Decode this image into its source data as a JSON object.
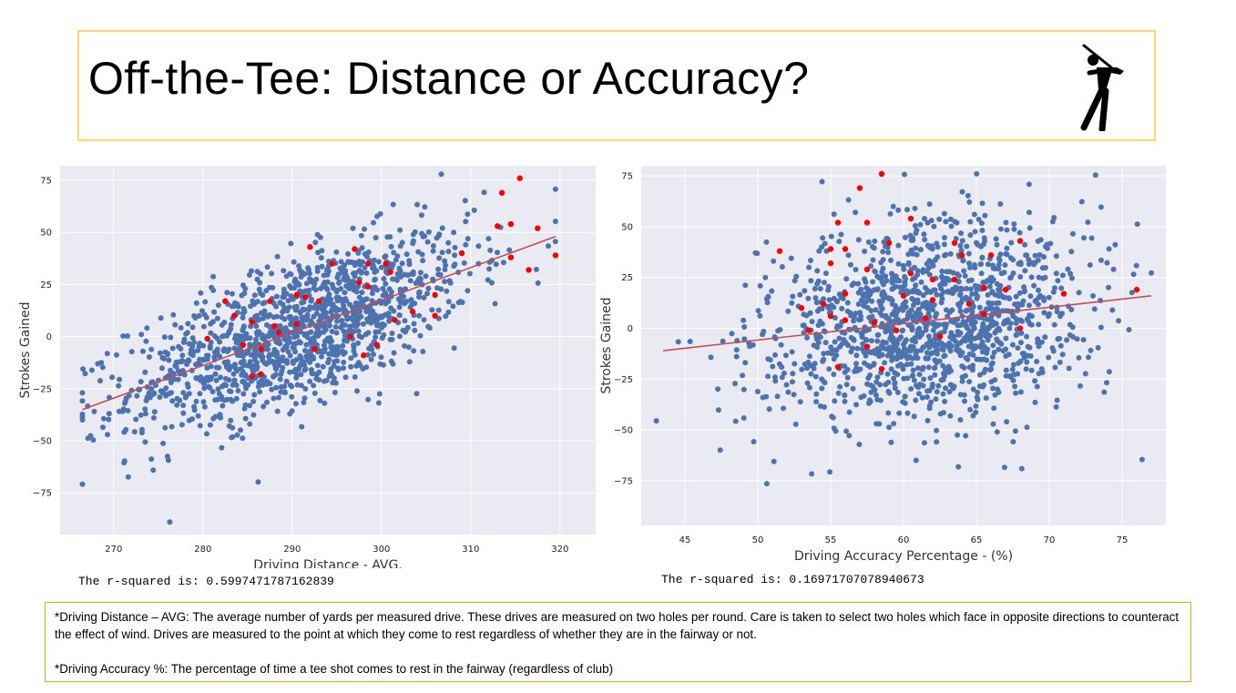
{
  "slide": {
    "title": "Off-the-Tee: Distance or Accuracy?",
    "notes": {
      "distance": "*Driving Distance – AVG: The average number of yards per measured drive. These drives are measured on two holes per round. Care is taken to select two holes which face in opposite directions to counteract the effect of wind. Drives are measured to the point at which they come to rest regardless of whether they are in the fairway or not.",
      "accuracy": "*Driving Accuracy %: The percentage of time a tee shot comes to rest in the fairway (regardless of club)"
    },
    "colors": {
      "title_border": "#ffd966",
      "note_border": "#e0b000",
      "plot_bg": "#eaeaf2",
      "points": "#4c72b0",
      "highlight": "#ff0000",
      "fit_line": "#c44e52"
    },
    "icon": "golfer-icon"
  },
  "chart_data": [
    {
      "type": "scatter",
      "xlabel": "Driving Distance - AVG.",
      "ylabel": "Strokes Gained",
      "xlim": [
        264,
        324
      ],
      "ylim": [
        -95,
        82
      ],
      "xticks": [
        270,
        280,
        290,
        300,
        310,
        320
      ],
      "yticks": [
        75,
        50,
        25,
        0,
        -25,
        -50,
        -75
      ],
      "grid": true,
      "r_squared_text": "The r-squared is: 0.5997471787162839",
      "fit_line": {
        "x": [
          266.5,
          319.5
        ],
        "y": [
          -35,
          48
        ]
      },
      "n_points_approx": 1400,
      "highlighted_points": [
        {
          "x": 315.5,
          "y": 76
        },
        {
          "x": 313.5,
          "y": 69
        },
        {
          "x": 317.5,
          "y": 52
        },
        {
          "x": 313,
          "y": 53
        },
        {
          "x": 314.5,
          "y": 54
        },
        {
          "x": 319.5,
          "y": 39
        },
        {
          "x": 314.5,
          "y": 38
        },
        {
          "x": 316.5,
          "y": 32
        },
        {
          "x": 292,
          "y": 43
        },
        {
          "x": 297,
          "y": 42
        },
        {
          "x": 300.5,
          "y": 35
        },
        {
          "x": 298.5,
          "y": 35
        },
        {
          "x": 294.5,
          "y": 35
        },
        {
          "x": 301,
          "y": 31
        },
        {
          "x": 297.5,
          "y": 26
        },
        {
          "x": 298.5,
          "y": 24
        },
        {
          "x": 290.5,
          "y": 20
        },
        {
          "x": 291.5,
          "y": 19
        },
        {
          "x": 287.5,
          "y": 17
        },
        {
          "x": 293,
          "y": 17
        },
        {
          "x": 282.5,
          "y": 17
        },
        {
          "x": 283.5,
          "y": 10
        },
        {
          "x": 285.5,
          "y": 7
        },
        {
          "x": 288,
          "y": 5
        },
        {
          "x": 290.5,
          "y": 6
        },
        {
          "x": 301.5,
          "y": 8
        },
        {
          "x": 306,
          "y": 10
        },
        {
          "x": 280.5,
          "y": -1
        },
        {
          "x": 284.5,
          "y": -4
        },
        {
          "x": 286.5,
          "y": -6
        },
        {
          "x": 288.5,
          "y": 2
        },
        {
          "x": 292.5,
          "y": -6
        },
        {
          "x": 296.5,
          "y": 0
        },
        {
          "x": 299.5,
          "y": -4
        },
        {
          "x": 298,
          "y": -9
        },
        {
          "x": 285.5,
          "y": -19
        },
        {
          "x": 286.5,
          "y": -18
        },
        {
          "x": 303.5,
          "y": 12
        },
        {
          "x": 309,
          "y": 40
        },
        {
          "x": 306,
          "y": 20
        }
      ]
    },
    {
      "type": "scatter",
      "xlabel": "Driving Accuracy Percentage - (%)",
      "ylabel": "Strokes Gained",
      "xlim": [
        42,
        78
      ],
      "ylim": [
        -97,
        80
      ],
      "xticks": [
        45,
        50,
        55,
        60,
        65,
        70,
        75
      ],
      "yticks": [
        75,
        50,
        25,
        0,
        -25,
        -50,
        -75
      ],
      "grid": true,
      "r_squared_text": "The r-squared is: 0.16971707078940673",
      "fit_line": {
        "x": [
          43.5,
          77
        ],
        "y": [
          -11,
          16
        ]
      },
      "n_points_approx": 1400,
      "highlighted_points": [
        {
          "x": 58.5,
          "y": 76
        },
        {
          "x": 57,
          "y": 69
        },
        {
          "x": 60.5,
          "y": 54
        },
        {
          "x": 55.5,
          "y": 52
        },
        {
          "x": 57.5,
          "y": 52
        },
        {
          "x": 51.5,
          "y": 38
        },
        {
          "x": 55,
          "y": 39
        },
        {
          "x": 56,
          "y": 39
        },
        {
          "x": 59,
          "y": 42
        },
        {
          "x": 63.5,
          "y": 42
        },
        {
          "x": 68,
          "y": 43
        },
        {
          "x": 64,
          "y": 36
        },
        {
          "x": 66,
          "y": 36
        },
        {
          "x": 55,
          "y": 32
        },
        {
          "x": 57.5,
          "y": 29
        },
        {
          "x": 60.5,
          "y": 27
        },
        {
          "x": 62,
          "y": 24
        },
        {
          "x": 63.5,
          "y": 24
        },
        {
          "x": 65.5,
          "y": 20
        },
        {
          "x": 67,
          "y": 19
        },
        {
          "x": 56,
          "y": 17
        },
        {
          "x": 60,
          "y": 16
        },
        {
          "x": 62,
          "y": 14
        },
        {
          "x": 54.5,
          "y": 12
        },
        {
          "x": 53,
          "y": 10
        },
        {
          "x": 64.5,
          "y": 12
        },
        {
          "x": 71,
          "y": 17
        },
        {
          "x": 76,
          "y": 19
        },
        {
          "x": 55,
          "y": 6
        },
        {
          "x": 58,
          "y": 3
        },
        {
          "x": 61.5,
          "y": 5
        },
        {
          "x": 65.5,
          "y": 7
        },
        {
          "x": 53.5,
          "y": -1
        },
        {
          "x": 56,
          "y": 4
        },
        {
          "x": 59.5,
          "y": -1
        },
        {
          "x": 62.5,
          "y": -4
        },
        {
          "x": 68,
          "y": 0
        },
        {
          "x": 57.5,
          "y": -9
        },
        {
          "x": 58.5,
          "y": -20
        },
        {
          "x": 55.5,
          "y": -19
        }
      ]
    }
  ]
}
